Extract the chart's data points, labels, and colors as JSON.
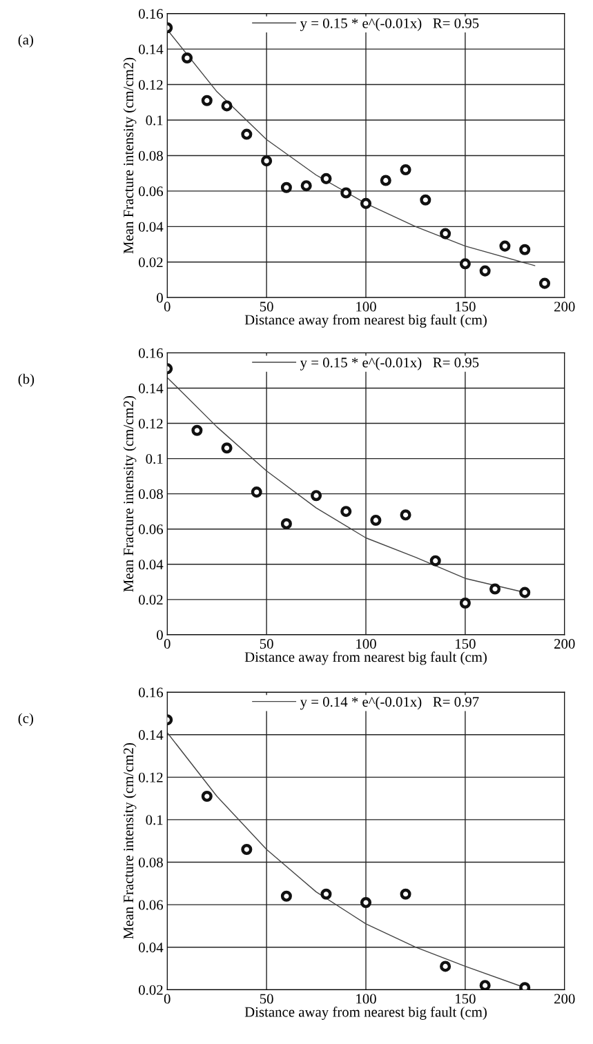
{
  "chart_data": [
    {
      "type": "scatter",
      "xlabel": "Distance away from nearest big fault (cm)",
      "ylabel": "Mean Fracture intensity (cm/cm2)",
      "annotations": [
        "(a)"
      ],
      "xlim": [
        0,
        200
      ],
      "xticks": [
        0,
        50,
        100,
        150,
        200
      ],
      "ylim": [
        0,
        0.16
      ],
      "yticks": [
        0,
        0.02,
        0.04,
        0.06,
        0.08,
        0.1,
        0.12,
        0.14,
        0.16
      ],
      "grid": true,
      "legend": "top",
      "series": [
        {
          "type": "scatter",
          "marker": "circle",
          "color": "#111111",
          "x": [
            0,
            10,
            20,
            30,
            40,
            50,
            60,
            70,
            80,
            90,
            100,
            110,
            120,
            130,
            140,
            150,
            160,
            170,
            180,
            190
          ],
          "values": [
            0.152,
            0.135,
            0.111,
            0.108,
            0.092,
            0.077,
            0.062,
            0.063,
            0.067,
            0.059,
            0.053,
            0.066,
            0.072,
            0.055,
            0.036,
            0.019,
            0.015,
            0.029,
            0.027,
            0.008
          ]
        },
        {
          "type": "line",
          "name": "y = 0.15 * e^(-0.01x)   R= 0.95",
          "color": "#444444",
          "x": [
            0,
            25,
            50,
            75,
            100,
            125,
            150,
            185
          ],
          "values": [
            0.151,
            0.116,
            0.089,
            0.069,
            0.053,
            0.04,
            0.029,
            0.018
          ]
        }
      ]
    },
    {
      "type": "scatter",
      "xlabel": "Distance away from nearest big fault (cm)",
      "ylabel": "Mean Fracture intensity (cm/cm2)",
      "annotations": [
        "(b)"
      ],
      "xlim": [
        0,
        200
      ],
      "xticks": [
        0,
        50,
        100,
        150,
        200
      ],
      "ylim": [
        0,
        0.16
      ],
      "yticks": [
        0,
        0.02,
        0.04,
        0.06,
        0.08,
        0.1,
        0.12,
        0.14,
        0.16
      ],
      "grid": true,
      "legend": "top",
      "series": [
        {
          "type": "scatter",
          "marker": "circle",
          "color": "#111111",
          "x": [
            0,
            15,
            30,
            45,
            60,
            75,
            90,
            105,
            120,
            135,
            150,
            165,
            180
          ],
          "values": [
            0.151,
            0.116,
            0.106,
            0.081,
            0.063,
            0.079,
            0.07,
            0.065,
            0.068,
            0.042,
            0.018,
            0.026,
            0.024
          ]
        },
        {
          "type": "line",
          "name": "y = 0.15 * e^(-0.01x)   R= 0.95",
          "color": "#444444",
          "x": [
            0,
            25,
            50,
            75,
            100,
            125,
            150,
            180
          ],
          "values": [
            0.146,
            0.118,
            0.093,
            0.072,
            0.055,
            0.044,
            0.032,
            0.024
          ]
        }
      ]
    },
    {
      "type": "scatter",
      "xlabel": "Distance away from nearest big fault (cm)",
      "ylabel": "Mean Fracture intensity (cm/cm2)",
      "annotations": [
        "(c)"
      ],
      "xlim": [
        0,
        200
      ],
      "xticks": [
        0,
        50,
        100,
        150,
        200
      ],
      "ylim": [
        0.02,
        0.16
      ],
      "yticks": [
        0.02,
        0.04,
        0.06,
        0.08,
        0.1,
        0.12,
        0.14,
        0.16
      ],
      "grid": true,
      "legend": "top",
      "series": [
        {
          "type": "scatter",
          "marker": "circle",
          "color": "#111111",
          "x": [
            0,
            20,
            40,
            60,
            80,
            100,
            120,
            140,
            160,
            180
          ],
          "values": [
            0.147,
            0.111,
            0.086,
            0.064,
            0.065,
            0.061,
            0.065,
            0.031,
            0.022,
            0.021
          ]
        },
        {
          "type": "line",
          "name": "y = 0.14 * e^(-0.01x)   R= 0.97",
          "color": "#444444",
          "x": [
            0,
            25,
            50,
            75,
            100,
            125,
            150,
            180
          ],
          "values": [
            0.141,
            0.111,
            0.086,
            0.066,
            0.051,
            0.04,
            0.031,
            0.021
          ]
        }
      ]
    }
  ]
}
